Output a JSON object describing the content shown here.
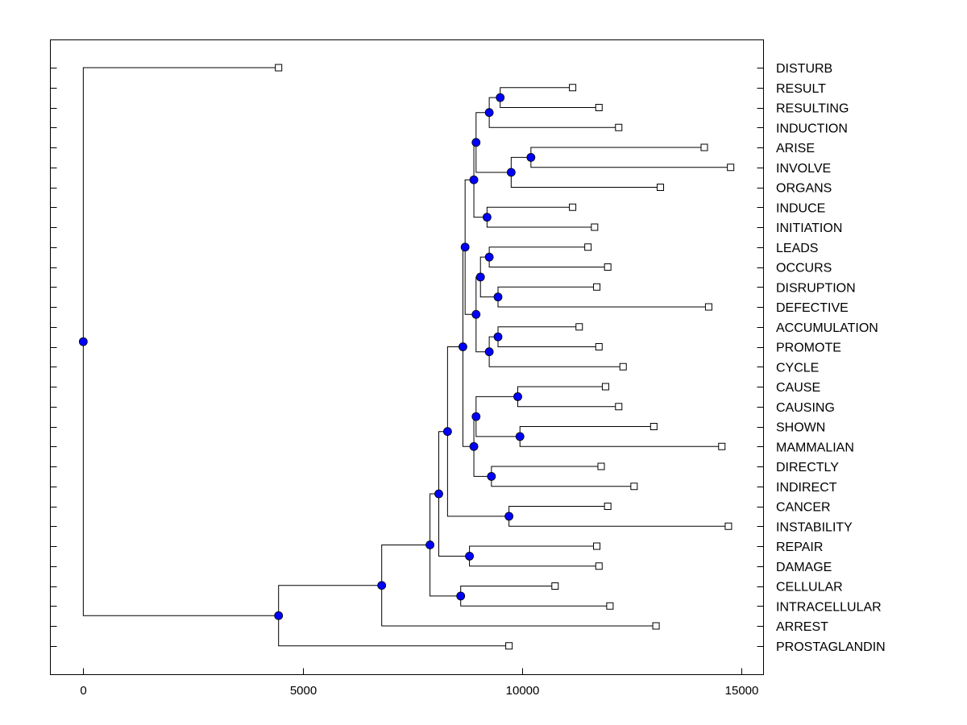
{
  "chart_data": {
    "type": "dendrogram",
    "title": "",
    "xlabel": "",
    "ylabel": "",
    "xlim": [
      -750,
      15500
    ],
    "x_ticks": [
      0,
      5000,
      10000,
      15000
    ],
    "x_tick_labels": [
      "0",
      "5000",
      "10000",
      "15000"
    ],
    "grid": false,
    "leaves": [
      {
        "label": "DISTURB",
        "value": 4450
      },
      {
        "label": "RESULT",
        "value": 11150
      },
      {
        "label": "RESULTING",
        "value": 11750
      },
      {
        "label": "INDUCTION",
        "value": 12200
      },
      {
        "label": "ARISE",
        "value": 14150
      },
      {
        "label": "INVOLVE",
        "value": 14750
      },
      {
        "label": "ORGANS",
        "value": 13150
      },
      {
        "label": "INDUCE",
        "value": 11150
      },
      {
        "label": "INITIATION",
        "value": 11650
      },
      {
        "label": "LEADS",
        "value": 11500
      },
      {
        "label": "OCCURS",
        "value": 11950
      },
      {
        "label": "DISRUPTION",
        "value": 11700
      },
      {
        "label": "DEFECTIVE",
        "value": 14250
      },
      {
        "label": "ACCUMULATION",
        "value": 11300
      },
      {
        "label": "PROMOTE",
        "value": 11750
      },
      {
        "label": "CYCLE",
        "value": 12300
      },
      {
        "label": "CAUSE",
        "value": 11900
      },
      {
        "label": "CAUSING",
        "value": 12200
      },
      {
        "label": "SHOWN",
        "value": 13000
      },
      {
        "label": "MAMMALIAN",
        "value": 14550
      },
      {
        "label": "DIRECTLY",
        "value": 11800
      },
      {
        "label": "INDIRECT",
        "value": 12550
      },
      {
        "label": "CANCER",
        "value": 11950
      },
      {
        "label": "INSTABILITY",
        "value": 14700
      },
      {
        "label": "REPAIR",
        "value": 11700
      },
      {
        "label": "DAMAGE",
        "value": 11750
      },
      {
        "label": "CELLULAR",
        "value": 10750
      },
      {
        "label": "INTRACELLULAR",
        "value": 12000
      },
      {
        "label": "ARREST",
        "value": 13050
      },
      {
        "label": "PROSTAGLANDIN",
        "value": 9700
      }
    ],
    "merges": [
      {
        "id": "n01",
        "height": 9500,
        "children": [
          "RESULT",
          "RESULTING"
        ]
      },
      {
        "id": "n02",
        "height": 9250,
        "children": [
          "n01",
          "INDUCTION"
        ]
      },
      {
        "id": "n03",
        "height": 10200,
        "children": [
          "ARISE",
          "INVOLVE"
        ]
      },
      {
        "id": "n04",
        "height": 9750,
        "children": [
          "n03",
          "ORGANS"
        ]
      },
      {
        "id": "n05",
        "height": 8950,
        "children": [
          "n02",
          "n04"
        ]
      },
      {
        "id": "n06",
        "height": 9200,
        "children": [
          "INDUCE",
          "INITIATION"
        ]
      },
      {
        "id": "n07",
        "height": 8900,
        "children": [
          "n05",
          "n06"
        ]
      },
      {
        "id": "n08",
        "height": 9250,
        "children": [
          "LEADS",
          "OCCURS"
        ]
      },
      {
        "id": "n09",
        "height": 9450,
        "children": [
          "DISRUPTION",
          "DEFECTIVE"
        ]
      },
      {
        "id": "n10",
        "height": 9050,
        "children": [
          "n08",
          "n09"
        ]
      },
      {
        "id": "n11",
        "height": 9450,
        "children": [
          "ACCUMULATION",
          "PROMOTE"
        ]
      },
      {
        "id": "n12",
        "height": 9250,
        "children": [
          "n11",
          "CYCLE"
        ]
      },
      {
        "id": "n13",
        "height": 8950,
        "children": [
          "n10",
          "n12"
        ]
      },
      {
        "id": "n14",
        "height": 8700,
        "children": [
          "n07",
          "n13"
        ]
      },
      {
        "id": "n15",
        "height": 9900,
        "children": [
          "CAUSE",
          "CAUSING"
        ]
      },
      {
        "id": "n16",
        "height": 9950,
        "children": [
          "SHOWN",
          "MAMMALIAN"
        ]
      },
      {
        "id": "n17",
        "height": 8950,
        "children": [
          "n15",
          "n16"
        ]
      },
      {
        "id": "n18",
        "height": 9300,
        "children": [
          "DIRECTLY",
          "INDIRECT"
        ]
      },
      {
        "id": "n19",
        "height": 8900,
        "children": [
          "n17",
          "n18"
        ]
      },
      {
        "id": "n20",
        "height": 8650,
        "children": [
          "n14",
          "n19"
        ]
      },
      {
        "id": "n21",
        "height": 9700,
        "children": [
          "CANCER",
          "INSTABILITY"
        ]
      },
      {
        "id": "n22",
        "height": 8300,
        "children": [
          "n20",
          "n21"
        ]
      },
      {
        "id": "n23",
        "height": 8800,
        "children": [
          "REPAIR",
          "DAMAGE"
        ]
      },
      {
        "id": "n24",
        "height": 8100,
        "children": [
          "n22",
          "n23"
        ]
      },
      {
        "id": "n25",
        "height": 8600,
        "children": [
          "CELLULAR",
          "INTRACELLULAR"
        ]
      },
      {
        "id": "n26",
        "height": 7900,
        "children": [
          "n24",
          "n25"
        ]
      },
      {
        "id": "n27",
        "height": 6800,
        "children": [
          "n26",
          "ARREST"
        ]
      },
      {
        "id": "n28",
        "height": 4450,
        "children": [
          "n27",
          "PROSTAGLANDIN"
        ]
      },
      {
        "id": "n29",
        "height": 0,
        "children": [
          "DISTURB",
          "n28"
        ]
      }
    ],
    "colors": {
      "node": "#0000ff",
      "line": "#000000",
      "leaf_marker": "#ffffff",
      "background": "#ffffff"
    }
  }
}
